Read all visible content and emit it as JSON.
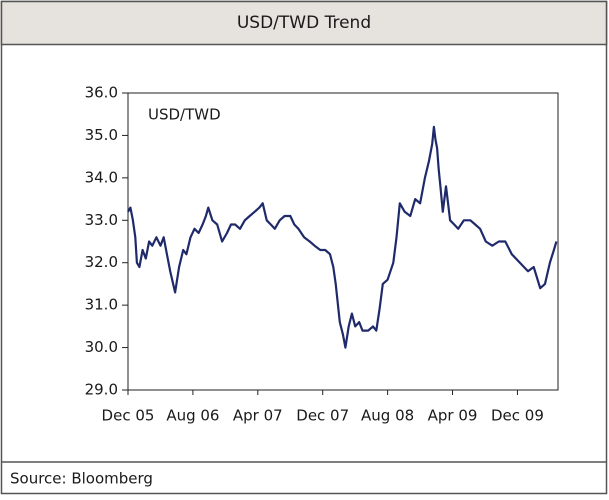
{
  "chart_data": {
    "type": "line",
    "title": "USD/TWD Trend",
    "source": "Source: Bloomberg",
    "xlim": [
      0,
      53
    ],
    "xticks": [
      {
        "value": 0,
        "label": "Dec 05"
      },
      {
        "value": 8,
        "label": "Aug 06"
      },
      {
        "value": 16,
        "label": "Apr 07"
      },
      {
        "value": 24,
        "label": "Dec 07"
      },
      {
        "value": 32,
        "label": "Aug 08"
      },
      {
        "value": 40,
        "label": "Apr 09"
      },
      {
        "value": 48,
        "label": "Dec 09"
      }
    ],
    "ylim": [
      29,
      36
    ],
    "yticks": [
      {
        "value": 29,
        "label": "29.0"
      },
      {
        "value": 30,
        "label": "30.0"
      },
      {
        "value": 31,
        "label": "31.0"
      },
      {
        "value": 32,
        "label": "32.0"
      },
      {
        "value": 33,
        "label": "33.0"
      },
      {
        "value": 34,
        "label": "34.0"
      },
      {
        "value": 35,
        "label": "35.0"
      },
      {
        "value": 36,
        "label": "36.0"
      }
    ],
    "series": [
      {
        "name": "USD/TWD",
        "color": "#1f2a6b",
        "x": [
          0,
          0.3,
          0.6,
          0.9,
          1.1,
          1.4,
          1.8,
          2.2,
          2.6,
          3.0,
          3.5,
          4.0,
          4.4,
          4.8,
          5.2,
          5.8,
          6.3,
          6.8,
          7.2,
          7.7,
          8.2,
          8.7,
          9.2,
          9.6,
          9.9,
          10.4,
          11.0,
          11.6,
          12.2,
          12.7,
          13.2,
          13.8,
          14.4,
          15.0,
          15.6,
          16.2,
          16.6,
          17.1,
          17.6,
          18.1,
          18.7,
          19.3,
          20.0,
          20.5,
          21.0,
          21.7,
          22.4,
          23.0,
          23.7,
          24.3,
          24.9,
          25.3,
          25.6,
          26.1,
          26.5,
          26.8,
          27.2,
          27.6,
          28.0,
          28.5,
          28.9,
          29.6,
          30.2,
          30.6,
          31.0,
          31.4,
          32.0,
          32.7,
          33.1,
          33.5,
          34.1,
          34.8,
          35.4,
          36.0,
          36.6,
          37.1,
          37.5,
          37.7,
          37.9,
          38.1,
          38.3,
          38.5,
          38.8,
          39.2,
          39.7,
          40.2,
          40.7,
          41.4,
          42.2,
          42.8,
          43.4,
          44.1,
          44.9,
          45.7,
          46.5,
          47.3,
          48.3,
          49.3,
          50.0,
          50.8,
          51.4,
          52.0,
          52.5,
          52.8
        ],
        "values": [
          33.2,
          33.3,
          33.0,
          32.6,
          32.0,
          31.9,
          32.3,
          32.1,
          32.5,
          32.4,
          32.6,
          32.4,
          32.6,
          32.2,
          31.8,
          31.3,
          31.9,
          32.3,
          32.2,
          32.6,
          32.8,
          32.7,
          32.9,
          33.1,
          33.3,
          33.0,
          32.9,
          32.5,
          32.7,
          32.9,
          32.9,
          32.8,
          33.0,
          33.1,
          33.2,
          33.3,
          33.4,
          33.0,
          32.9,
          32.8,
          33.0,
          33.1,
          33.1,
          32.9,
          32.8,
          32.6,
          32.5,
          32.4,
          32.3,
          32.3,
          32.2,
          31.9,
          31.5,
          30.6,
          30.3,
          30.0,
          30.5,
          30.8,
          30.5,
          30.6,
          30.4,
          30.4,
          30.5,
          30.4,
          30.9,
          31.5,
          31.6,
          32.0,
          32.6,
          33.4,
          33.2,
          33.1,
          33.5,
          33.4,
          34.0,
          34.4,
          34.8,
          35.2,
          34.9,
          34.7,
          34.2,
          33.8,
          33.2,
          33.8,
          33.0,
          32.9,
          32.8,
          33.0,
          33.0,
          32.9,
          32.8,
          32.5,
          32.4,
          32.5,
          32.5,
          32.2,
          32.0,
          31.8,
          31.9,
          31.4,
          31.5,
          32.0,
          32.3,
          32.5
        ]
      }
    ]
  }
}
